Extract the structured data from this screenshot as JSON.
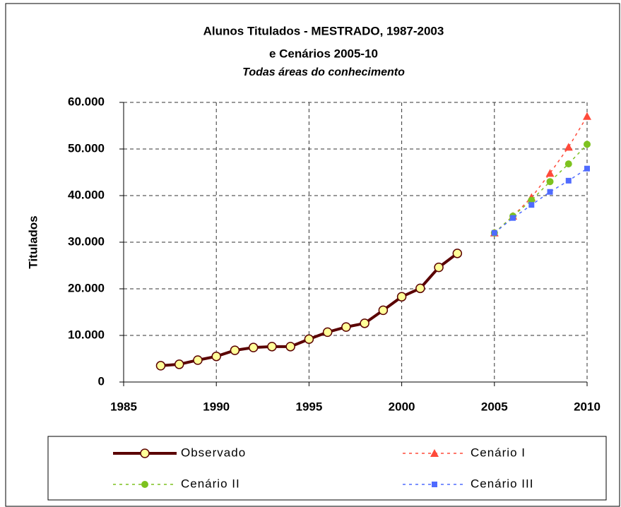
{
  "chart_data": {
    "type": "line",
    "title": [
      "Alunos Titulados - MESTRADO, 1987-2003",
      "e  Cenários 2005-10"
    ],
    "subtitle": "Todas áreas do conhecimento",
    "ylabel": "Titulados",
    "xlim": [
      1985,
      2010
    ],
    "xticks": [
      1985,
      1990,
      1995,
      2000,
      2005,
      2010
    ],
    "ylim": [
      0,
      60000
    ],
    "yticks": [
      0,
      {
        "value": 10000,
        "label": "10.000"
      },
      {
        "value": 20000,
        "label": "20.000"
      },
      {
        "value": 30000,
        "label": "30.000"
      },
      {
        "value": 40000,
        "label": "40.000"
      },
      {
        "value": 50000,
        "label": "50.000"
      },
      {
        "value": 60000,
        "label": "60.000"
      }
    ],
    "grid": true,
    "series": [
      {
        "name": "Observado",
        "color": "#5a0000",
        "marker": "circle",
        "dashed": false,
        "x": [
          1987,
          1988,
          1989,
          1990,
          1991,
          1992,
          1993,
          1994,
          1995,
          1996,
          1997,
          1998,
          1999,
          2000,
          2001,
          2002,
          2003
        ],
        "values": [
          3500,
          3800,
          4700,
          5500,
          6800,
          7400,
          7600,
          7600,
          9200,
          10700,
          11800,
          12600,
          15400,
          18300,
          20100,
          24600,
          27600
        ]
      },
      {
        "name": "Cenário I",
        "color": "#ff4a3a",
        "marker": "triangle",
        "dashed": true,
        "x": [
          2005,
          2006,
          2007,
          2008,
          2009,
          2010
        ],
        "values": [
          32000,
          35600,
          39600,
          44800,
          50400,
          57000
        ]
      },
      {
        "name": "Cenário II",
        "color": "#7dc21f",
        "marker": "circle",
        "dashed": true,
        "x": [
          2005,
          2006,
          2007,
          2008,
          2009,
          2010
        ],
        "values": [
          32000,
          35600,
          39000,
          43000,
          46800,
          51000
        ]
      },
      {
        "name": "Cenário III",
        "color": "#4f6bff",
        "marker": "square",
        "dashed": true,
        "x": [
          2005,
          2006,
          2007,
          2008,
          2009,
          2010
        ],
        "values": [
          32000,
          35200,
          38000,
          40800,
          43200,
          45800
        ]
      }
    ]
  }
}
